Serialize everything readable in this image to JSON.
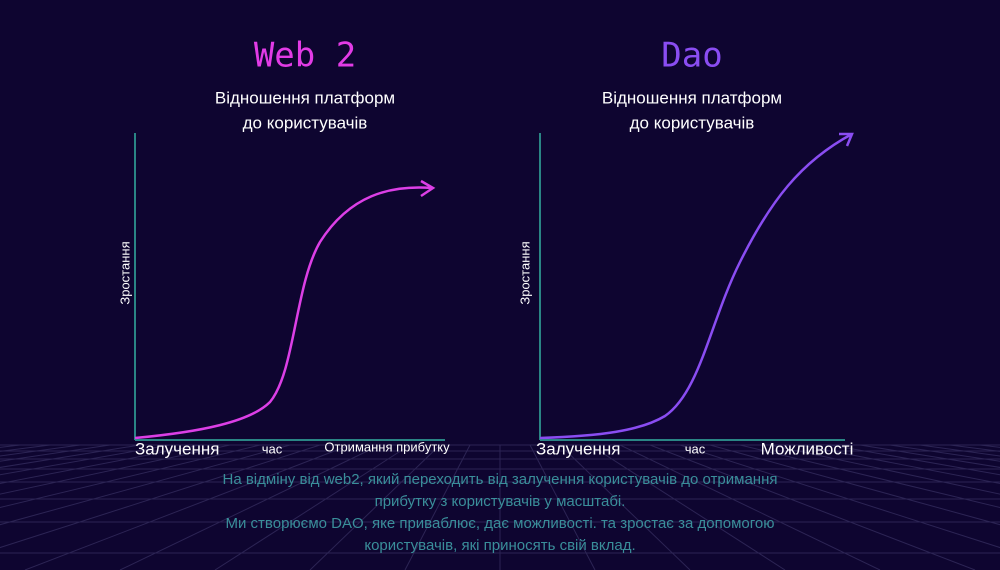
{
  "panels": [
    {
      "title": "Web 2",
      "subtitle_lines": [
        "Відношення платформ",
        "до користувачів"
      ],
      "y_label": "Зростання",
      "x_start": "Залучення",
      "x_mid": "час",
      "x_end": "Отримання прибутку"
    },
    {
      "title": "Dao",
      "subtitle_lines": [
        "Відношення платформ",
        "до користувачів"
      ],
      "y_label": "Зростання",
      "x_start": "Залучення",
      "x_mid": "час",
      "x_end": "Можливості"
    }
  ],
  "caption_lines": [
    "На відміну від web2, який переходить від залучення користувачів до отримання",
    "прибутку з користувачів у масштабі.",
    "Ми створюємо DAO, яке приваблює, дає можливості. та зростає за допомогою",
    "користувачів, які приносять свій вклад."
  ]
}
